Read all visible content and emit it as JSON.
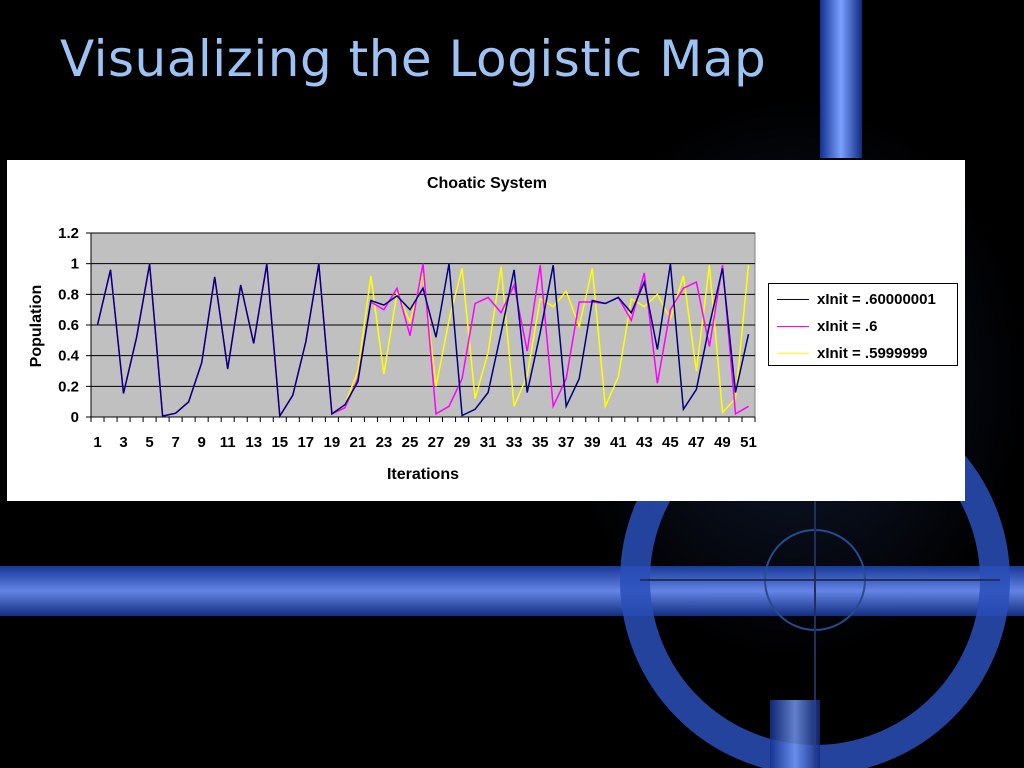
{
  "slide": {
    "title": "Visualizing the Logistic Map"
  },
  "colors": {
    "background": "#000000",
    "title": "#9cc3f3",
    "plot_area": "#c0c0c0",
    "series_1": "#000080",
    "series_2": "#ff00ff",
    "series_3": "#ffff00"
  },
  "chart_data": {
    "type": "line",
    "title": "Choatic System",
    "xlabel": "Iterations",
    "ylabel": "Population",
    "ylim": [
      0,
      1.2
    ],
    "y_ticks": [
      "0",
      "0.2",
      "0.4",
      "0.6",
      "0.8",
      "1",
      "1.2"
    ],
    "x_tick_labels": [
      "1",
      "3",
      "5",
      "7",
      "9",
      "11",
      "13",
      "15",
      "17",
      "19",
      "21",
      "23",
      "25",
      "27",
      "29",
      "31",
      "33",
      "35",
      "37",
      "39",
      "41",
      "43",
      "45",
      "47",
      "49",
      "51"
    ],
    "grid": true,
    "legend_position": "right",
    "x": [
      1,
      2,
      3,
      4,
      5,
      6,
      7,
      8,
      9,
      10,
      11,
      12,
      13,
      14,
      15,
      16,
      17,
      18,
      19,
      20,
      21,
      22,
      23,
      24,
      25,
      26,
      27,
      28,
      29,
      30,
      31,
      32,
      33,
      34,
      35,
      36,
      37,
      38,
      39,
      40,
      41,
      42,
      43,
      44,
      45,
      46,
      47,
      48,
      49,
      50,
      51
    ],
    "series": [
      {
        "name": "xInit = .60000001",
        "color": "#000080",
        "values": [
          0.6,
          0.96,
          0.154,
          0.52,
          0.998,
          0.006,
          0.025,
          0.098,
          0.354,
          0.914,
          0.313,
          0.861,
          0.48,
          0.998,
          0.006,
          0.142,
          0.49,
          0.999,
          0.02,
          0.08,
          0.23,
          0.76,
          0.73,
          0.79,
          0.7,
          0.84,
          0.52,
          1.0,
          0.01,
          0.05,
          0.16,
          0.55,
          0.96,
          0.16,
          0.55,
          0.99,
          0.07,
          0.25,
          0.76,
          0.74,
          0.78,
          0.68,
          0.88,
          0.44,
          1.0,
          0.05,
          0.18,
          0.6,
          0.97,
          0.16,
          0.54
        ]
      },
      {
        "name": "xInit = .6",
        "color": "#ff00ff",
        "values": [
          0.6,
          0.96,
          0.154,
          0.52,
          0.998,
          0.006,
          0.025,
          0.098,
          0.354,
          0.914,
          0.313,
          0.861,
          0.48,
          0.998,
          0.006,
          0.142,
          0.49,
          0.999,
          0.02,
          0.06,
          0.25,
          0.75,
          0.7,
          0.84,
          0.53,
          1.0,
          0.02,
          0.07,
          0.25,
          0.74,
          0.78,
          0.68,
          0.86,
          0.43,
          0.99,
          0.07,
          0.25,
          0.75,
          0.75,
          0.74,
          0.78,
          0.63,
          0.94,
          0.22,
          0.7,
          0.84,
          0.88,
          0.46,
          0.99,
          0.02,
          0.07
        ]
      },
      {
        "name": "xInit = .5999999",
        "color": "#ffff00",
        "values": [
          0.6,
          0.96,
          0.154,
          0.52,
          0.998,
          0.006,
          0.025,
          0.098,
          0.354,
          0.914,
          0.313,
          0.861,
          0.48,
          0.998,
          0.006,
          0.142,
          0.49,
          0.999,
          0.02,
          0.08,
          0.3,
          0.92,
          0.28,
          0.81,
          0.62,
          0.94,
          0.2,
          0.63,
          0.97,
          0.12,
          0.42,
          0.98,
          0.07,
          0.27,
          0.77,
          0.72,
          0.82,
          0.59,
          0.97,
          0.07,
          0.26,
          0.77,
          0.72,
          0.8,
          0.64,
          0.92,
          0.3,
          0.99,
          0.03,
          0.12,
          0.99
        ]
      }
    ]
  }
}
